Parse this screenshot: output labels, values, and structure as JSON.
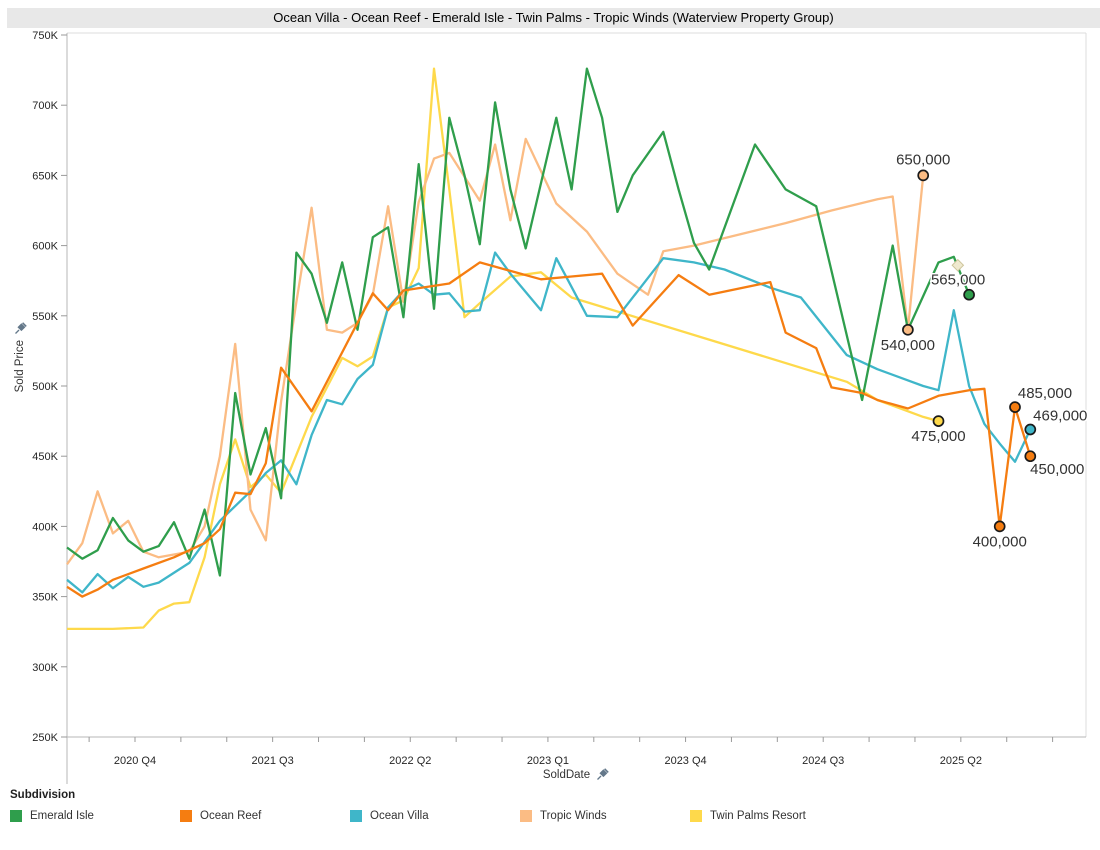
{
  "title": "Ocean Villa - Ocean Reef - Emerald Isle - Twin Palms - Tropic Winds (Waterview Property Group)",
  "y_axis": {
    "label": "Sold Price",
    "ticks": [
      "750K",
      "700K",
      "650K",
      "600K",
      "550K",
      "500K",
      "450K",
      "400K",
      "350K",
      "300K",
      "250K"
    ],
    "min": 250000,
    "max": 750000,
    "step": 50000
  },
  "x_axis": {
    "label": "SoldDate",
    "tick_labels": [
      "2020 Q4",
      "2021 Q3",
      "2022 Q2",
      "2023 Q1",
      "2023 Q4",
      "2024 Q3",
      "2025 Q2"
    ],
    "quarters_per_label": 3
  },
  "legend": {
    "title": "Subdivision",
    "items": [
      {
        "label": "Emerald Isle",
        "color": "#2f9e4c"
      },
      {
        "label": "Ocean Reef",
        "color": "#f57d11"
      },
      {
        "label": "Ocean Villa",
        "color": "#3fb6c9"
      },
      {
        "label": "Tropic Winds",
        "color": "#fbbc84"
      },
      {
        "label": "Twin Palms Resort",
        "color": "#fed94b"
      }
    ]
  },
  "chart_data": {
    "type": "line",
    "title": "Ocean Villa - Ocean Reef - Emerald Isle - Twin Palms - Tropic Winds (Waterview Property Group)",
    "xlabel": "SoldDate",
    "ylabel": "Sold Price",
    "ylim": [
      250000,
      750000
    ],
    "x_range": [
      "2020-05",
      "2025-08"
    ],
    "grid": false,
    "legend_position": "bottom",
    "series": [
      {
        "name": "Twin Palms Resort",
        "color": "#fed94b",
        "points": [
          [
            "2020-05",
            327000
          ],
          [
            "2020-08",
            327000
          ],
          [
            "2020-10",
            328000
          ],
          [
            "2020-11",
            340000
          ],
          [
            "2020-12",
            345000
          ],
          [
            "2021-01",
            346000
          ],
          [
            "2021-02",
            378000
          ],
          [
            "2021-03",
            430000
          ],
          [
            "2021-04",
            462000
          ],
          [
            "2021-05",
            428000
          ],
          [
            "2021-06",
            437000
          ],
          [
            "2021-07",
            424000
          ],
          [
            "2021-09",
            478000
          ],
          [
            "2021-11",
            520000
          ],
          [
            "2021-12",
            514000
          ],
          [
            "2022-01",
            521000
          ],
          [
            "2022-02",
            556000
          ],
          [
            "2022-03",
            561000
          ],
          [
            "2022-04",
            584000
          ],
          [
            "2022-05",
            726000
          ],
          [
            "2022-06",
            640000
          ],
          [
            "2022-07",
            549000
          ],
          [
            "2022-08",
            559000
          ],
          [
            "2022-10",
            578000
          ],
          [
            "2022-12",
            581000
          ],
          [
            "2023-02",
            563000
          ],
          [
            "2024-08",
            503000
          ],
          [
            "2024-10",
            490000
          ],
          [
            "2025-01",
            478000
          ],
          [
            "2025-02",
            475000
          ]
        ]
      },
      {
        "name": "Tropic Winds",
        "color": "#fbbc84",
        "points": [
          [
            "2020-05",
            373000
          ],
          [
            "2020-06",
            388000
          ],
          [
            "2020-07",
            425000
          ],
          [
            "2020-08",
            395000
          ],
          [
            "2020-09",
            404000
          ],
          [
            "2020-10",
            382000
          ],
          [
            "2020-11",
            378000
          ],
          [
            "2021-01",
            382000
          ],
          [
            "2021-02",
            400000
          ],
          [
            "2021-03",
            450000
          ],
          [
            "2021-04",
            530000
          ],
          [
            "2021-05",
            412000
          ],
          [
            "2021-06",
            390000
          ],
          [
            "2021-07",
            489000
          ],
          [
            "2021-08",
            560000
          ],
          [
            "2021-09",
            627000
          ],
          [
            "2021-10",
            540000
          ],
          [
            "2021-11",
            538000
          ],
          [
            "2021-12",
            545000
          ],
          [
            "2022-01",
            565000
          ],
          [
            "2022-02",
            628000
          ],
          [
            "2022-03",
            560000
          ],
          [
            "2022-04",
            631000
          ],
          [
            "2022-05",
            662000
          ],
          [
            "2022-06",
            666000
          ],
          [
            "2022-08",
            632000
          ],
          [
            "2022-09",
            672000
          ],
          [
            "2022-10",
            618000
          ],
          [
            "2022-11",
            676000
          ],
          [
            "2023-01",
            630000
          ],
          [
            "2023-03",
            610000
          ],
          [
            "2023-05",
            580000
          ],
          [
            "2023-07",
            565000
          ],
          [
            "2023-08",
            596000
          ],
          [
            "2023-10",
            600000
          ],
          [
            "2024-01",
            608000
          ],
          [
            "2024-04",
            616000
          ],
          [
            "2024-07",
            625000
          ],
          [
            "2024-10",
            633000
          ],
          [
            "2024-11",
            635000
          ],
          [
            "2024-12",
            540000
          ],
          [
            "2025-01",
            650000
          ]
        ]
      },
      {
        "name": "Ocean Villa",
        "color": "#3fb6c9",
        "points": [
          [
            "2020-05",
            362000
          ],
          [
            "2020-06",
            353000
          ],
          [
            "2020-07",
            366000
          ],
          [
            "2020-08",
            356000
          ],
          [
            "2020-09",
            364000
          ],
          [
            "2020-10",
            357000
          ],
          [
            "2020-11",
            360000
          ],
          [
            "2021-01",
            374000
          ],
          [
            "2021-03",
            404000
          ],
          [
            "2021-05",
            425000
          ],
          [
            "2021-06",
            438000
          ],
          [
            "2021-07",
            447000
          ],
          [
            "2021-08",
            430000
          ],
          [
            "2021-09",
            465000
          ],
          [
            "2021-10",
            490000
          ],
          [
            "2021-11",
            487000
          ],
          [
            "2021-12",
            505000
          ],
          [
            "2022-01",
            515000
          ],
          [
            "2022-02",
            556000
          ],
          [
            "2022-03",
            568000
          ],
          [
            "2022-04",
            573000
          ],
          [
            "2022-05",
            565000
          ],
          [
            "2022-06",
            566000
          ],
          [
            "2022-07",
            553000
          ],
          [
            "2022-08",
            554000
          ],
          [
            "2022-09",
            595000
          ],
          [
            "2022-10",
            580000
          ],
          [
            "2022-12",
            554000
          ],
          [
            "2023-01",
            591000
          ],
          [
            "2023-03",
            550000
          ],
          [
            "2023-05",
            549000
          ],
          [
            "2023-08",
            591000
          ],
          [
            "2023-10",
            588000
          ],
          [
            "2023-12",
            583000
          ],
          [
            "2024-03",
            570000
          ],
          [
            "2024-05",
            563000
          ],
          [
            "2024-08",
            522000
          ],
          [
            "2024-10",
            512000
          ],
          [
            "2025-01",
            500000
          ],
          [
            "2025-02",
            497000
          ],
          [
            "2025-03",
            554000
          ],
          [
            "2025-04",
            500000
          ],
          [
            "2025-05",
            473000
          ],
          [
            "2025-06",
            459000
          ],
          [
            "2025-07",
            446000
          ],
          [
            "2025-08",
            469000
          ]
        ]
      },
      {
        "name": "Emerald Isle",
        "color": "#2f9e4c",
        "points": [
          [
            "2020-05",
            385000
          ],
          [
            "2020-06",
            377000
          ],
          [
            "2020-07",
            383000
          ],
          [
            "2020-08",
            406000
          ],
          [
            "2020-09",
            390000
          ],
          [
            "2020-10",
            382000
          ],
          [
            "2020-11",
            386000
          ],
          [
            "2020-12",
            403000
          ],
          [
            "2021-01",
            377000
          ],
          [
            "2021-02",
            412000
          ],
          [
            "2021-03",
            365000
          ],
          [
            "2021-04",
            495000
          ],
          [
            "2021-05",
            437000
          ],
          [
            "2021-06",
            470000
          ],
          [
            "2021-07",
            420000
          ],
          [
            "2021-08",
            595000
          ],
          [
            "2021-09",
            580000
          ],
          [
            "2021-10",
            545000
          ],
          [
            "2021-11",
            588000
          ],
          [
            "2021-12",
            540000
          ],
          [
            "2022-01",
            606000
          ],
          [
            "2022-02",
            613000
          ],
          [
            "2022-03",
            549000
          ],
          [
            "2022-04",
            658000
          ],
          [
            "2022-05",
            555000
          ],
          [
            "2022-06",
            691000
          ],
          [
            "2022-07",
            650000
          ],
          [
            "2022-08",
            601000
          ],
          [
            "2022-09",
            702000
          ],
          [
            "2022-10",
            640000
          ],
          [
            "2022-11",
            598000
          ],
          [
            "2023-01",
            691000
          ],
          [
            "2023-02",
            640000
          ],
          [
            "2023-03",
            726000
          ],
          [
            "2023-04",
            691000
          ],
          [
            "2023-05",
            624000
          ],
          [
            "2023-06",
            650000
          ],
          [
            "2023-08",
            681000
          ],
          [
            "2023-09",
            640000
          ],
          [
            "2023-10",
            602000
          ],
          [
            "2023-11",
            583000
          ],
          [
            "2024-02",
            672000
          ],
          [
            "2024-04",
            640000
          ],
          [
            "2024-06",
            628000
          ],
          [
            "2024-09",
            490000
          ],
          [
            "2024-11",
            600000
          ],
          [
            "2024-12",
            540000
          ],
          [
            "2025-02",
            588000
          ],
          [
            "2025-03",
            592000
          ],
          [
            "2025-04",
            565000
          ]
        ]
      },
      {
        "name": "Ocean Reef",
        "color": "#f57d11",
        "points": [
          [
            "2020-05",
            357000
          ],
          [
            "2020-06",
            350000
          ],
          [
            "2020-07",
            355000
          ],
          [
            "2020-08",
            362000
          ],
          [
            "2020-10",
            370000
          ],
          [
            "2020-12",
            378000
          ],
          [
            "2021-02",
            388000
          ],
          [
            "2021-03",
            398000
          ],
          [
            "2021-04",
            424000
          ],
          [
            "2021-05",
            423000
          ],
          [
            "2021-06",
            445000
          ],
          [
            "2021-07",
            513000
          ],
          [
            "2021-09",
            482000
          ],
          [
            "2022-01",
            566000
          ],
          [
            "2022-02",
            554000
          ],
          [
            "2022-03",
            568000
          ],
          [
            "2022-06",
            573000
          ],
          [
            "2022-08",
            588000
          ],
          [
            "2022-10",
            582000
          ],
          [
            "2022-12",
            576000
          ],
          [
            "2023-02",
            578000
          ],
          [
            "2023-04",
            580000
          ],
          [
            "2023-06",
            543000
          ],
          [
            "2023-09",
            579000
          ],
          [
            "2023-11",
            565000
          ],
          [
            "2024-03",
            574000
          ],
          [
            "2024-04",
            538000
          ],
          [
            "2024-06",
            527000
          ],
          [
            "2024-07",
            499000
          ],
          [
            "2024-09",
            495000
          ],
          [
            "2024-10",
            490000
          ],
          [
            "2024-12",
            484000
          ],
          [
            "2025-02",
            493000
          ],
          [
            "2025-04",
            497000
          ],
          [
            "2025-05",
            498000
          ],
          [
            "2025-06",
            400000
          ],
          [
            "2025-07",
            485000
          ],
          [
            "2025-08",
            450000
          ]
        ]
      }
    ]
  },
  "annotations": [
    {
      "text": "650,000",
      "series": "Tropic Winds",
      "date": "2025-01",
      "value": 650000,
      "anchor": "above"
    },
    {
      "text": "565,000",
      "series": "Emerald Isle",
      "date": "2025-04",
      "value": 565000,
      "anchor": "above-left"
    },
    {
      "text": "540,000",
      "series": "Tropic Winds",
      "date": "2024-12",
      "value": 540000,
      "anchor": "below"
    },
    {
      "text": "475,000",
      "series": "Twin Palms Resort",
      "date": "2025-02",
      "value": 475000,
      "anchor": "below"
    },
    {
      "text": "485,000",
      "series": "Ocean Reef",
      "date": "2025-07",
      "value": 485000,
      "anchor": "above-right"
    },
    {
      "text": "469,000",
      "series": "Ocean Villa",
      "date": "2025-08",
      "value": 469000,
      "anchor": "above-right"
    },
    {
      "text": "450,000",
      "series": "Ocean Reef",
      "date": "2025-08",
      "value": 450000,
      "anchor": "below-right"
    },
    {
      "text": "400,000",
      "series": "Ocean Reef",
      "date": "2025-06",
      "value": 400000,
      "anchor": "below"
    }
  ],
  "ghost_marker": {
    "shape": "diamond",
    "date": "2025-03",
    "value": 586000,
    "fill": "#efe9cf",
    "border": "#cdc49b"
  }
}
